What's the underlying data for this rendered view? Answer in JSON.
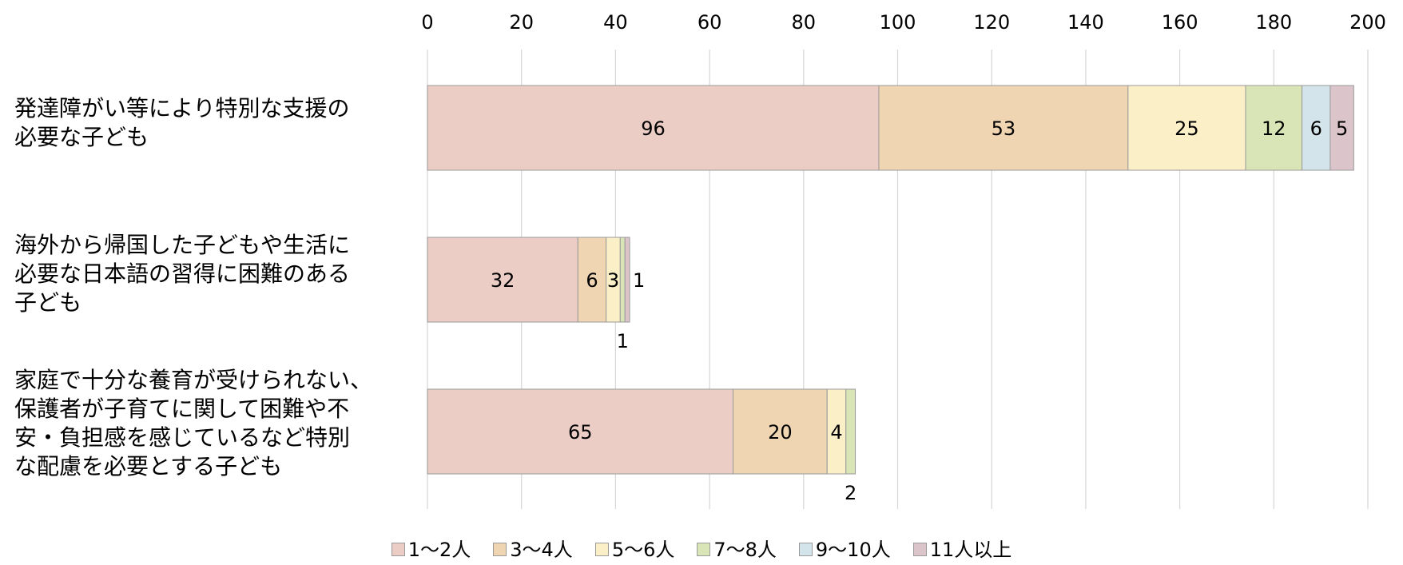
{
  "chart_data": {
    "type": "bar",
    "orientation": "horizontal",
    "stacked": true,
    "title": "",
    "xlabel": "",
    "ylabel": "",
    "xlim": [
      0,
      200
    ],
    "x_ticks": [
      0,
      20,
      40,
      60,
      80,
      100,
      120,
      140,
      160,
      180,
      200
    ],
    "x_axis_position": "top",
    "grid": true,
    "legend_position": "bottom",
    "categories": [
      "発達障がい等により特別な支援の\n必要な子ども",
      "海外から帰国した子どもや生活に\n必要な日本語の習得に困難のある\n子ども",
      "家庭で十分な養育が受けられない、\n保護者が子育てに関して困難や不\n安・負担感を感じているなど特別\nな配慮を必要とする子ども"
    ],
    "series": [
      {
        "name": "1〜2人",
        "color": "#ebcdc6",
        "values": [
          96,
          32,
          65
        ]
      },
      {
        "name": "3〜4人",
        "color": "#efd5b1",
        "values": [
          53,
          6,
          20
        ]
      },
      {
        "name": "5〜6人",
        "color": "#fbefc8",
        "values": [
          25,
          3,
          4
        ]
      },
      {
        "name": "7〜8人",
        "color": "#d9e5b6",
        "values": [
          12,
          1,
          2
        ]
      },
      {
        "name": "9〜10人",
        "color": "#d3e5ea",
        "values": [
          6,
          0,
          0
        ]
      },
      {
        "name": "11人以上",
        "color": "#dbc5cb",
        "values": [
          5,
          1,
          0
        ]
      }
    ]
  }
}
